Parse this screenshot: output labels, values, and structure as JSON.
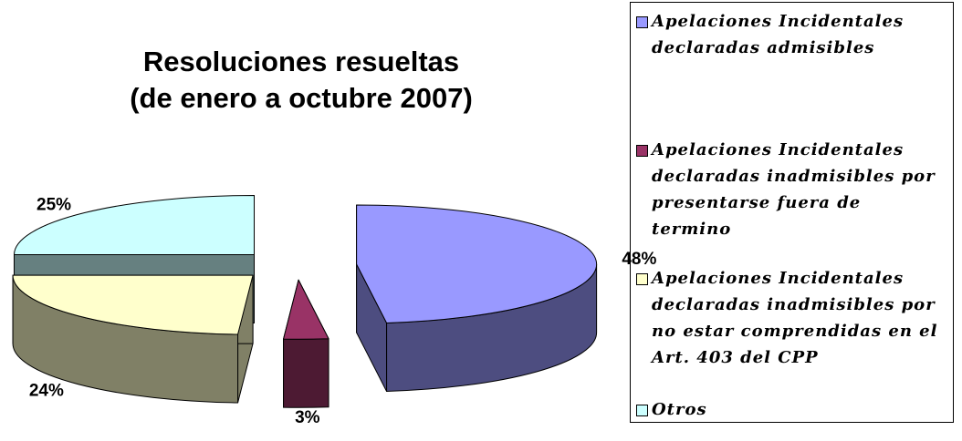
{
  "chart_data": {
    "type": "pie3d",
    "title": [
      "Resoluciones resueltas",
      "(de enero a octubre 2007)"
    ],
    "categories": [
      "Apelaciones Incidentales declaradas admisibles",
      "Apelaciones Incidentales declaradas inadmisibles por presentarse fuera de termino",
      "Apelaciones Incidentales declaradas inadmisibles por no estar comprendidas en el Art. 403 del CPP",
      "Otros"
    ],
    "values": [
      48,
      3,
      24,
      25
    ],
    "value_labels": [
      "48%",
      "3%",
      "24%",
      "25%"
    ],
    "colors": [
      "#9999ff",
      "#993366",
      "#ffffcc",
      "#ccffff"
    ],
    "legend": "right"
  }
}
